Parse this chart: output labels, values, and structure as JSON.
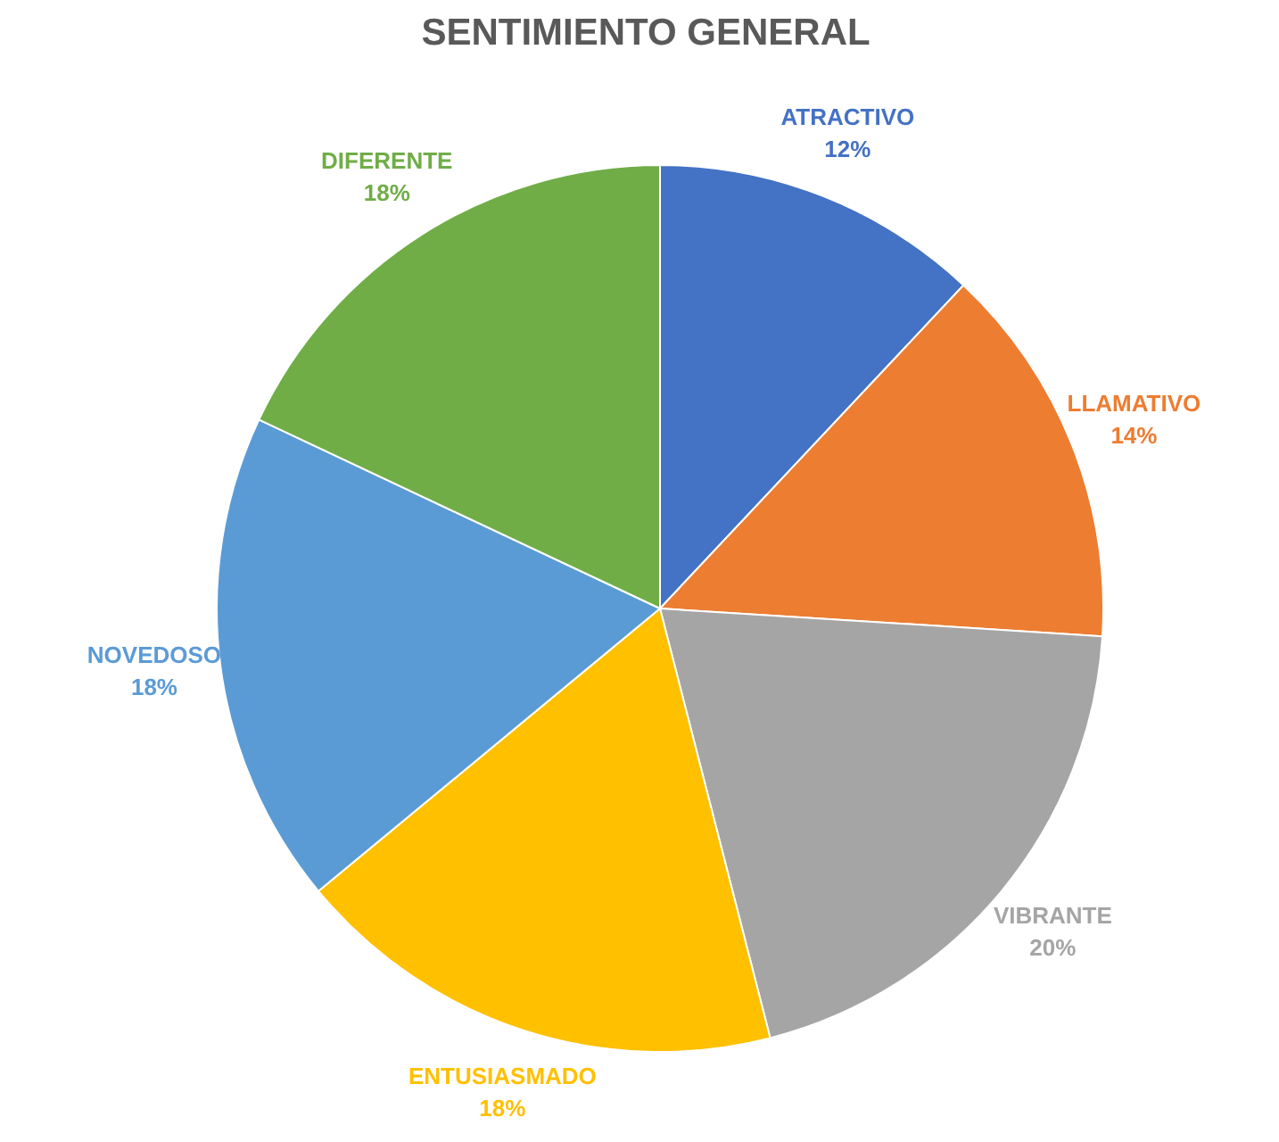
{
  "chart_data": {
    "type": "pie",
    "title": "SENTIMIENTO GENERAL",
    "categories": [
      "ATRACTIVO",
      "LLAMATIVO",
      "VIBRANTE",
      "ENTUSIASMADO",
      "NOVEDOSO",
      "DIFERENTE"
    ],
    "values": [
      12,
      14,
      20,
      18,
      18,
      18
    ],
    "colors": [
      "#4472c4",
      "#ed7d31",
      "#a5a5a5",
      "#ffc000",
      "#5b9bd5",
      "#70ad47"
    ],
    "value_labels": [
      "12%",
      "14%",
      "20%",
      "18%",
      "18%",
      "18%"
    ],
    "legend": false
  }
}
